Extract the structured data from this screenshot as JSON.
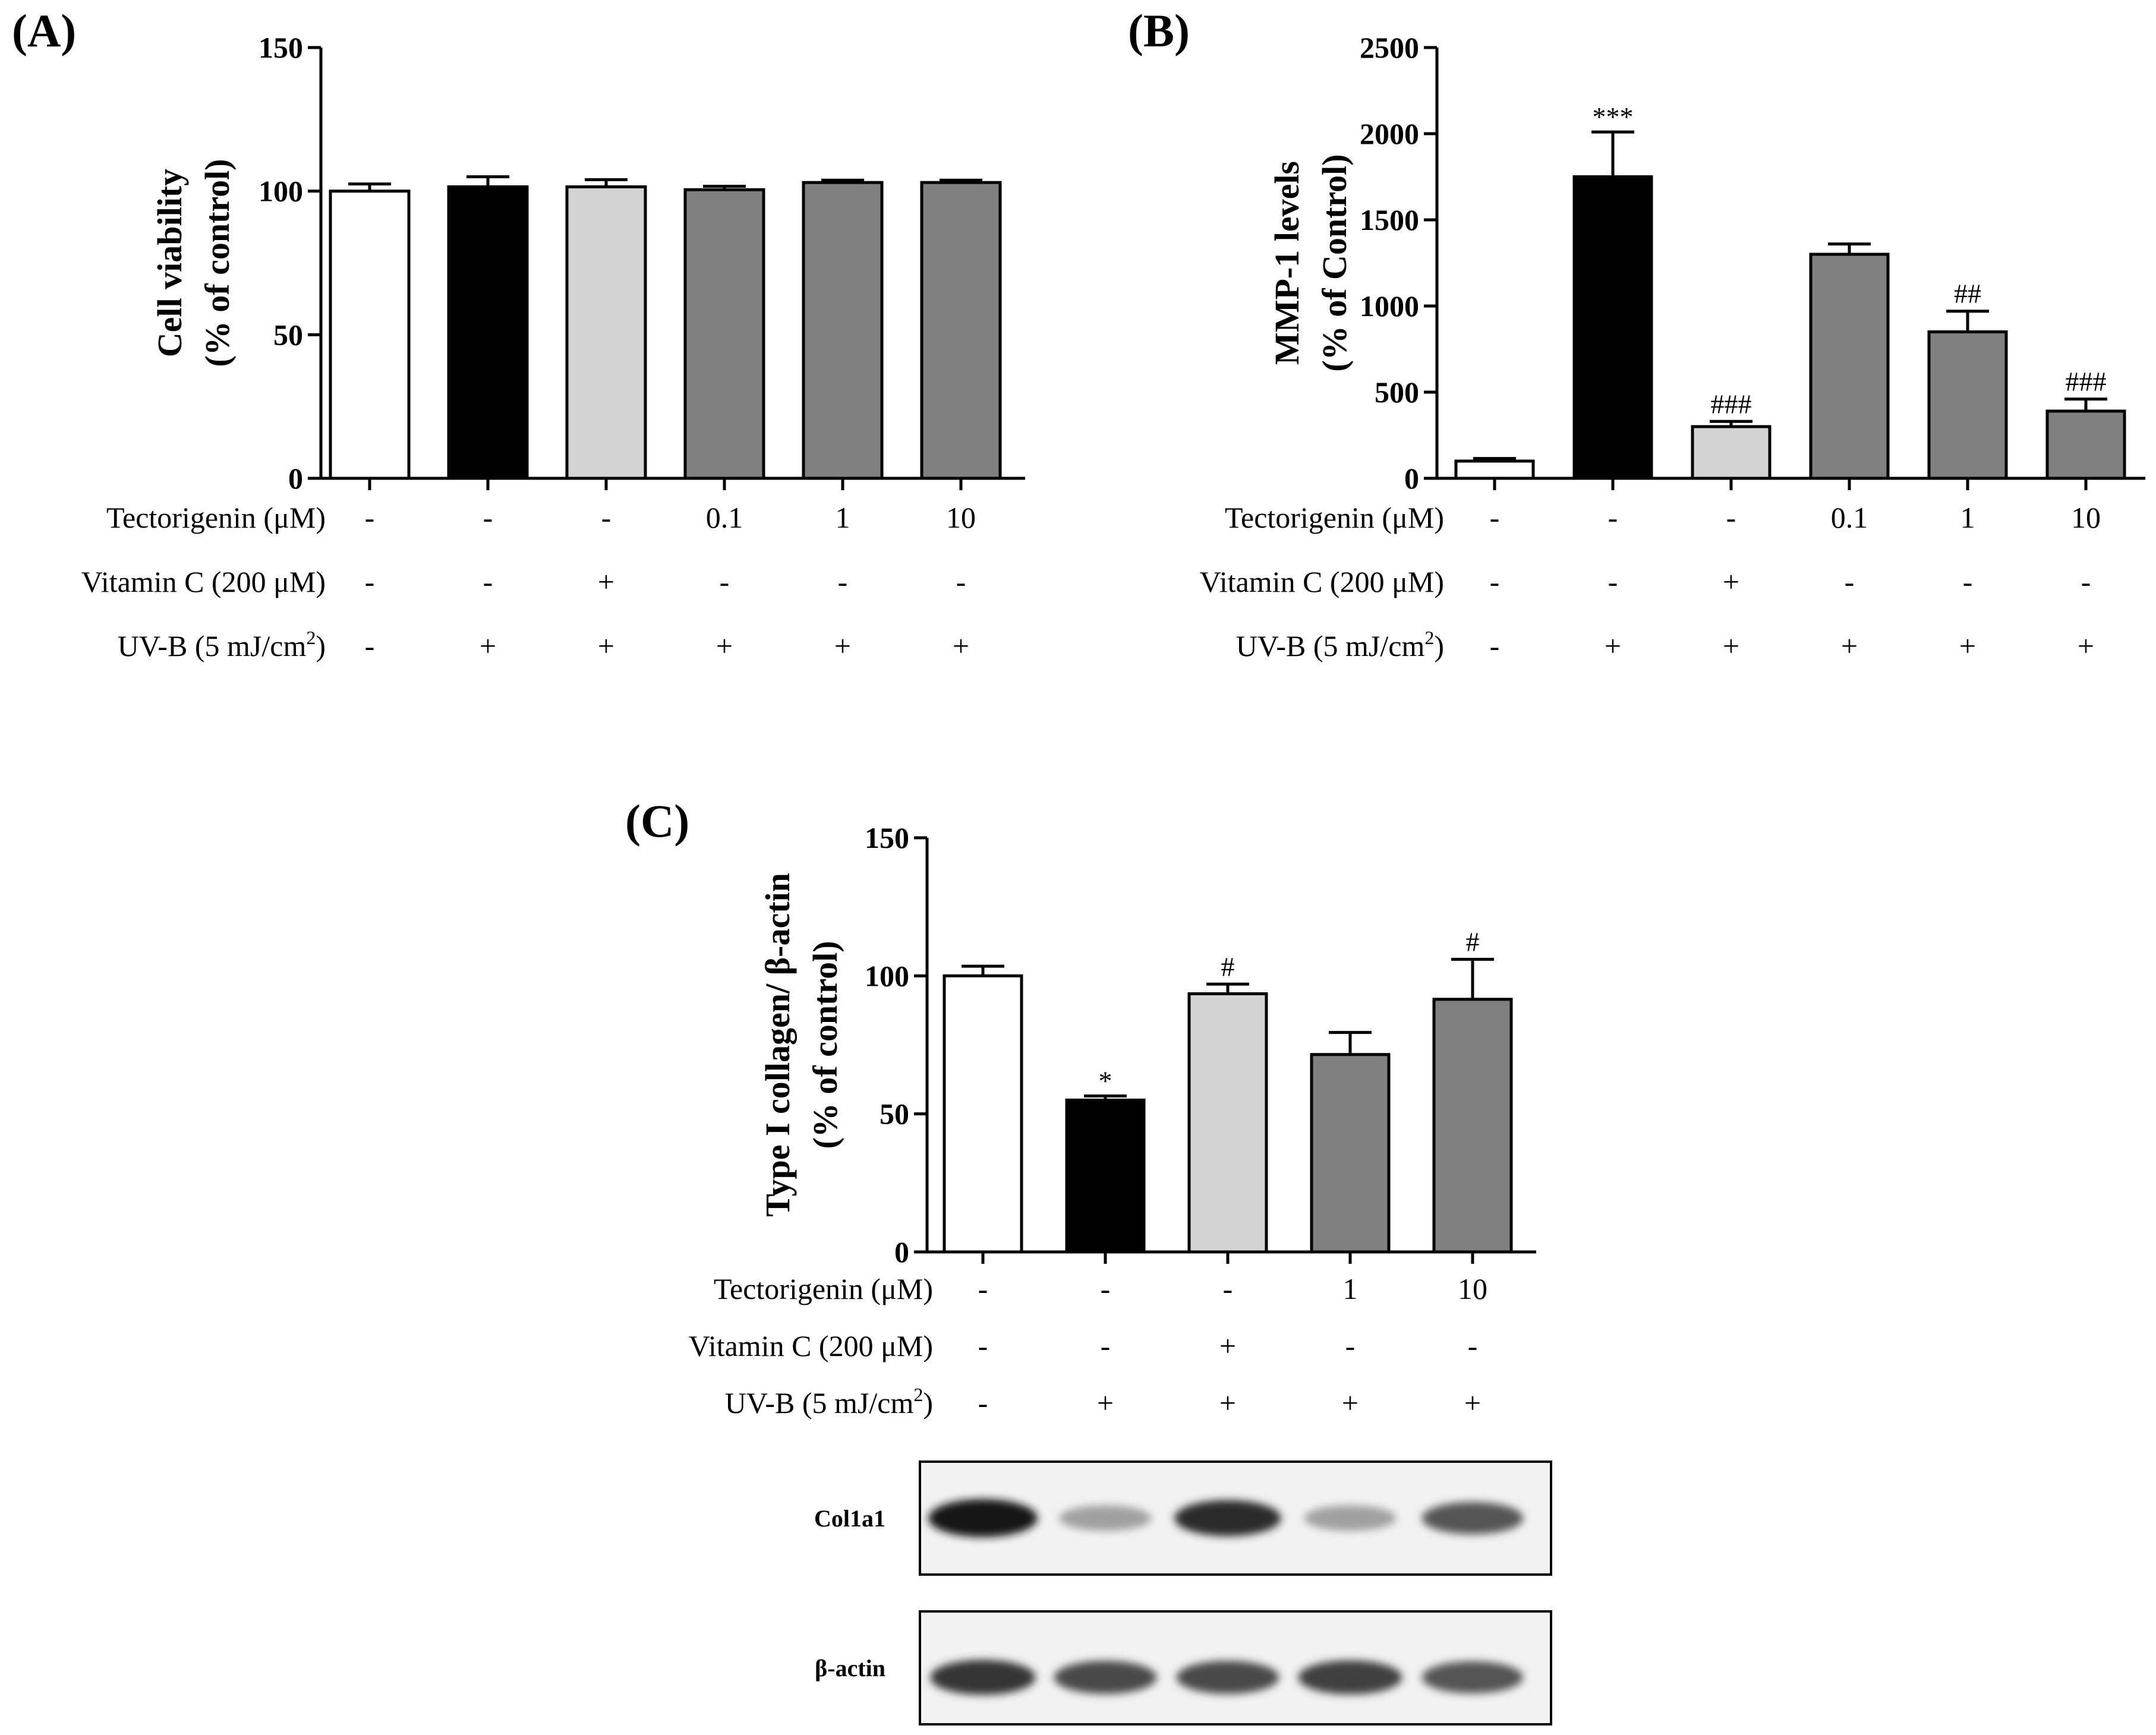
{
  "chart_data": [
    {
      "type": "bar",
      "panel": "(A)",
      "ylabel_lines": [
        "Cell viability",
        "(% of control)"
      ],
      "ylim": [
        0,
        150
      ],
      "yticks": [
        0,
        50,
        100,
        150
      ],
      "values": [
        100,
        101.5,
        101.5,
        100.5,
        103,
        103
      ],
      "errors": [
        2.5,
        3.5,
        2.5,
        1.2,
        0.8,
        0.8
      ],
      "fills": [
        "#ffffff",
        "#000000",
        "#d3d3d3",
        "#808080",
        "#808080",
        "#808080"
      ],
      "annotations": [
        "",
        "",
        "",
        "",
        "",
        ""
      ],
      "conditions": [
        {
          "label": "Tectorigenin (μM)",
          "values": [
            "-",
            "-",
            "-",
            "0.1",
            "1",
            "10"
          ]
        },
        {
          "label": "Vitamin  C (200 μM)",
          "values": [
            "-",
            "-",
            "+",
            "-",
            "-",
            "-"
          ]
        },
        {
          "label": "UV-B (5 mJ/cm",
          "sup": "2",
          "label_end": ")",
          "values": [
            "-",
            "+",
            "+",
            "+",
            "+",
            "+"
          ]
        }
      ]
    },
    {
      "type": "bar",
      "panel": "(B)",
      "ylabel_lines": [
        "MMP-1 levels",
        "(% of Control)"
      ],
      "ylim": [
        0,
        2500
      ],
      "yticks": [
        0,
        500,
        1000,
        1500,
        2000,
        2500
      ],
      "values": [
        100,
        1750,
        300,
        1300,
        850,
        390
      ],
      "errors": [
        15,
        260,
        30,
        60,
        120,
        70
      ],
      "fills": [
        "#ffffff",
        "#000000",
        "#d3d3d3",
        "#808080",
        "#808080",
        "#808080"
      ],
      "annotations": [
        "",
        "***",
        "###",
        "",
        "##",
        "###"
      ],
      "conditions": [
        {
          "label": "Tectorigenin (μM)",
          "values": [
            "-",
            "-",
            "-",
            "0.1",
            "1",
            "10"
          ]
        },
        {
          "label": "Vitamin  C (200 μM)",
          "values": [
            "-",
            "-",
            "+",
            "-",
            "-",
            "-"
          ]
        },
        {
          "label": "UV-B (5 mJ/cm",
          "sup": "2",
          "label_end": ")",
          "values": [
            "-",
            "+",
            "+",
            "+",
            "+",
            "+"
          ]
        }
      ]
    },
    {
      "type": "bar",
      "panel": "(C)",
      "ylabel_lines": [
        "Type I collagen/ β-actin",
        "(% of control)"
      ],
      "ylim": [
        0,
        150
      ],
      "yticks": [
        0,
        50,
        100,
        150
      ],
      "values": [
        100,
        55,
        93.5,
        71.5,
        91.5
      ],
      "errors": [
        3.5,
        1.5,
        3.5,
        8,
        14.5
      ],
      "fills": [
        "#ffffff",
        "#000000",
        "#d3d3d3",
        "#808080",
        "#808080"
      ],
      "annotations": [
        "",
        "*",
        "#",
        "",
        "#"
      ],
      "conditions": [
        {
          "label": "Tectorigenin (μM)",
          "values": [
            "-",
            "-",
            "-",
            "1",
            "10"
          ]
        },
        {
          "label": "Vitamin  C (200 μM)",
          "values": [
            "-",
            "-",
            "+",
            "-",
            "-"
          ]
        },
        {
          "label": "UV-B (5 mJ/cm",
          "sup": "2",
          "label_end": ")",
          "values": [
            "-",
            "+",
            "+",
            "+",
            "+"
          ]
        }
      ],
      "blots": [
        {
          "label": "Col1a1",
          "band_intensity": [
            1.0,
            0.35,
            0.9,
            0.35,
            0.7
          ]
        },
        {
          "label": "β-actin",
          "band_intensity": [
            0.85,
            0.75,
            0.75,
            0.8,
            0.7
          ]
        }
      ]
    }
  ]
}
